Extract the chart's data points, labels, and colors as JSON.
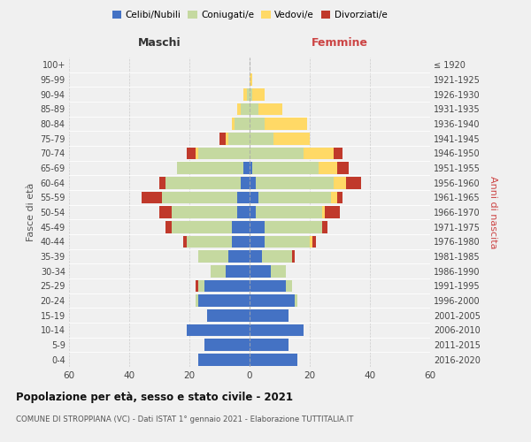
{
  "age_groups": [
    "0-4",
    "5-9",
    "10-14",
    "15-19",
    "20-24",
    "25-29",
    "30-34",
    "35-39",
    "40-44",
    "45-49",
    "50-54",
    "55-59",
    "60-64",
    "65-69",
    "70-74",
    "75-79",
    "80-84",
    "85-89",
    "90-94",
    "95-99",
    "100+"
  ],
  "birth_years": [
    "2016-2020",
    "2011-2015",
    "2006-2010",
    "2001-2005",
    "1996-2000",
    "1991-1995",
    "1986-1990",
    "1981-1985",
    "1976-1980",
    "1971-1975",
    "1966-1970",
    "1961-1965",
    "1956-1960",
    "1951-1955",
    "1946-1950",
    "1941-1945",
    "1936-1940",
    "1931-1935",
    "1926-1930",
    "1921-1925",
    "≤ 1920"
  ],
  "maschi": {
    "celibi": [
      17,
      15,
      21,
      14,
      17,
      15,
      8,
      7,
      6,
      6,
      4,
      4,
      3,
      2,
      0,
      0,
      0,
      0,
      0,
      0,
      0
    ],
    "coniugati": [
      0,
      0,
      0,
      0,
      1,
      2,
      5,
      10,
      15,
      20,
      22,
      25,
      25,
      22,
      17,
      7,
      5,
      3,
      1,
      0,
      0
    ],
    "vedovi": [
      0,
      0,
      0,
      0,
      0,
      0,
      0,
      0,
      0,
      0,
      0,
      0,
      0,
      0,
      1,
      1,
      1,
      1,
      1,
      0,
      0
    ],
    "divorziati": [
      0,
      0,
      0,
      0,
      0,
      1,
      0,
      0,
      1,
      2,
      4,
      7,
      2,
      0,
      3,
      2,
      0,
      0,
      0,
      0,
      0
    ]
  },
  "femmine": {
    "nubili": [
      16,
      13,
      18,
      13,
      15,
      12,
      7,
      4,
      5,
      5,
      2,
      3,
      2,
      1,
      0,
      0,
      0,
      0,
      0,
      0,
      0
    ],
    "coniugate": [
      0,
      0,
      0,
      0,
      1,
      2,
      5,
      10,
      15,
      19,
      22,
      24,
      26,
      22,
      18,
      8,
      5,
      3,
      1,
      0,
      0
    ],
    "vedove": [
      0,
      0,
      0,
      0,
      0,
      0,
      0,
      0,
      1,
      0,
      1,
      2,
      4,
      6,
      10,
      12,
      14,
      8,
      4,
      1,
      0
    ],
    "divorziate": [
      0,
      0,
      0,
      0,
      0,
      0,
      0,
      1,
      1,
      2,
      5,
      2,
      5,
      4,
      3,
      0,
      0,
      0,
      0,
      0,
      0
    ]
  },
  "colors": {
    "celibi_nubili": "#4472c4",
    "coniugati": "#c5d9a0",
    "vedovi": "#ffd966",
    "divorziati": "#c0392b"
  },
  "xlim": 60,
  "title": "Popolazione per età, sesso e stato civile - 2021",
  "subtitle": "COMUNE DI STROPPIANA (VC) - Dati ISTAT 1° gennaio 2021 - Elaborazione TUTTITALIA.IT",
  "xlabel_left": "Maschi",
  "xlabel_right": "Femmine",
  "ylabel_left": "Fasce di età",
  "ylabel_right": "Anni di nascita",
  "legend_labels": [
    "Celibi/Nubili",
    "Coniugati/e",
    "Vedovi/e",
    "Divorziati/e"
  ],
  "background_color": "#f0f0f0"
}
